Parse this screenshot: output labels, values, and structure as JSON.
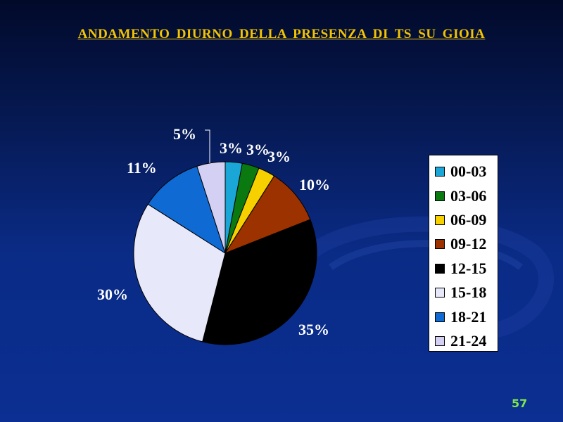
{
  "slide": {
    "title": "ANDAMENTO  DIURNO  DELLA  PRESENZA  DI  TS  SU  GIOIA",
    "page_number": "57"
  },
  "colors": {
    "title": "#f3c400",
    "page_number": "#7ee84a",
    "background_top": "#020a2a",
    "background_bottom": "#0b2f92"
  },
  "chart_data": {
    "type": "pie",
    "title": "",
    "categories": [
      "00-03",
      "03-06",
      "06-09",
      "09-12",
      "12-15",
      "15-18",
      "18-21",
      "21-24"
    ],
    "values": [
      3,
      3,
      3,
      10,
      35,
      30,
      11,
      5
    ],
    "labels": [
      "3%",
      "3%",
      "3%",
      "10%",
      "35%",
      "30%",
      "11%",
      "5%"
    ],
    "colors": [
      "#1aa7d7",
      "#0a7a10",
      "#f7d000",
      "#9b3200",
      "#000000",
      "#e8e8fb",
      "#0f6ad4",
      "#d4d0f4"
    ],
    "legend_position": "right",
    "value_labels": "percent"
  }
}
